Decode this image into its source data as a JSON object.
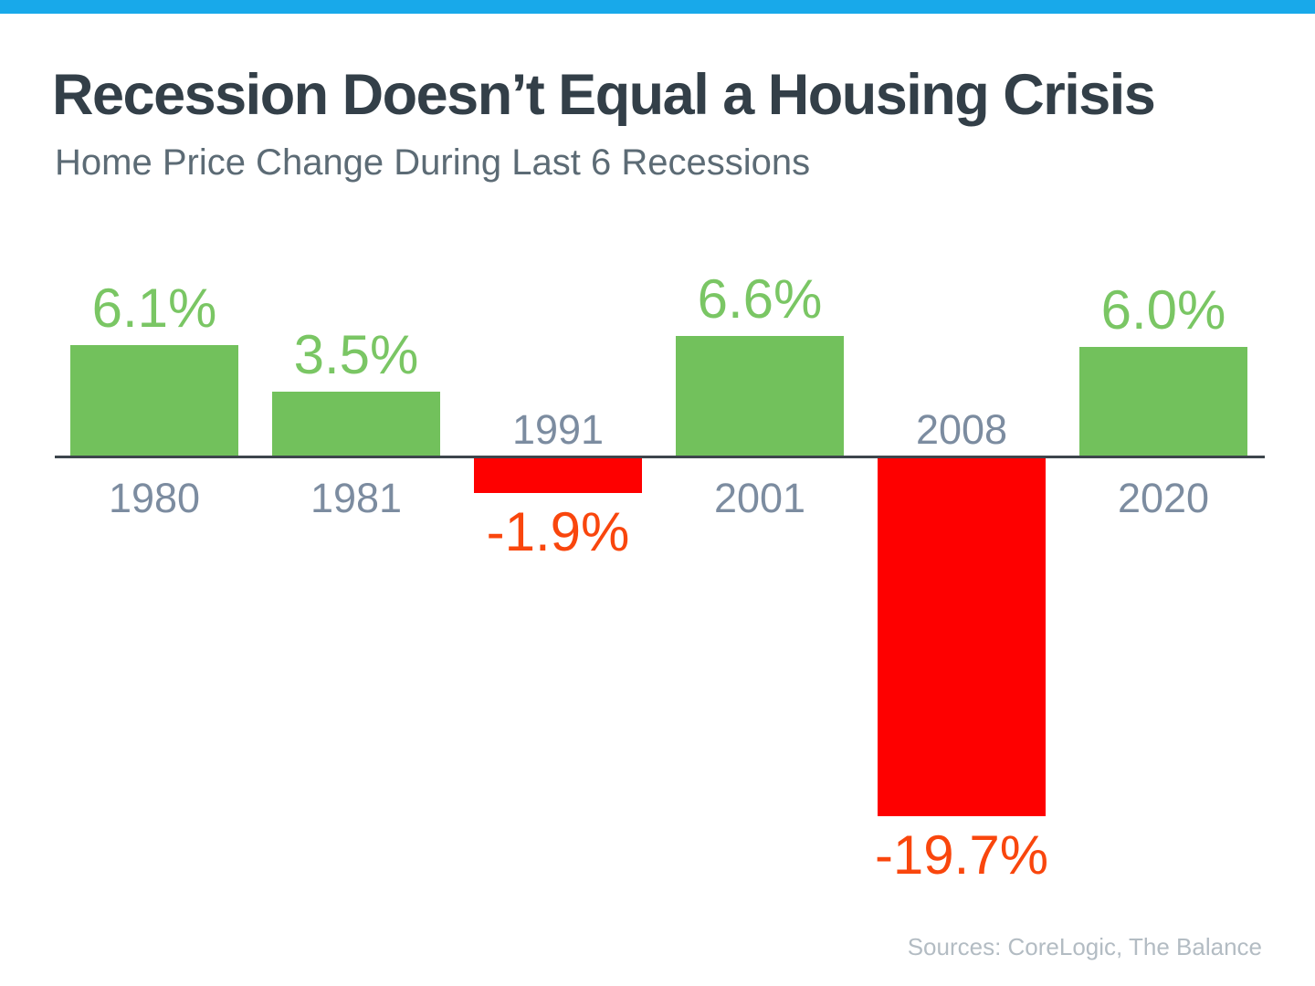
{
  "page": {
    "top_bar_color": "#18A9EA",
    "title": "Recession Doesn’t Equal a Housing Crisis",
    "subtitle": "Home Price Change During Last 6 Recessions",
    "source_note": "Sources: CoreLogic, The Balance"
  },
  "chart_data": {
    "type": "bar",
    "title": "Recession Doesn’t Equal a Housing Crisis",
    "subtitle": "Home Price Change During Last 6 Recessions",
    "categories": [
      "1980",
      "1981",
      "1991",
      "2001",
      "2008",
      "2020"
    ],
    "values": [
      6.1,
      3.5,
      -1.9,
      6.6,
      -19.7,
      6.0
    ],
    "value_labels": [
      "6.1%",
      "3.5%",
      "-1.9%",
      "6.6%",
      "-19.7%",
      "6.0%"
    ],
    "xlabel": "",
    "ylabel": "",
    "ylim": [
      -22,
      8
    ],
    "grid": false,
    "legend": false,
    "baseline": 0,
    "positive_color": "#72C15C",
    "negative_color": "#FE0000",
    "positive_label_color": "#7AC664",
    "negative_label_color": "#F9460D",
    "category_label_color": "#7C8CA0",
    "axis_color": "#3D454C",
    "source": "Sources: CoreLogic, The Balance"
  }
}
